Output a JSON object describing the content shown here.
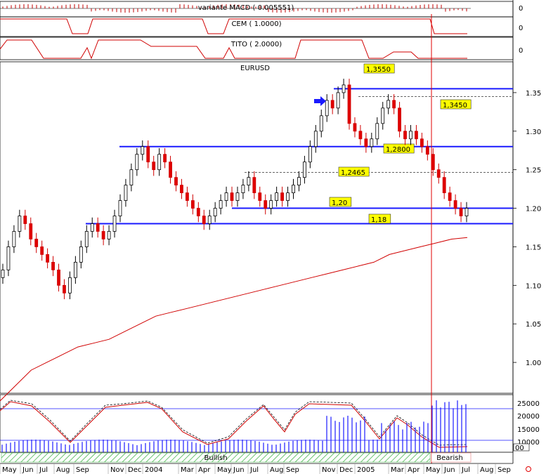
{
  "chart_data": {
    "type": "candlestick",
    "title": "EURUSD",
    "panels": [
      {
        "name": "variante MACD ( 0.005551)",
        "zero_label": "0"
      },
      {
        "name": "CEM ( 1.0000)",
        "zero_label": "0"
      },
      {
        "name": "TITO ( 2.0000)",
        "zero_label": "0"
      }
    ],
    "y_ticks": [
      "1.35",
      "1.30",
      "1.25",
      "1.20",
      "1.15",
      "1.10",
      "1.05",
      "1.00"
    ],
    "ylim": [
      0.96,
      1.39
    ],
    "x_tick_labels": [
      "May",
      "Jun",
      "Jul",
      "Aug",
      "Sep",
      "Nov",
      "Dec",
      "2004",
      "Mar",
      "Apr",
      "May",
      "Jun",
      "Jul",
      "Aug",
      "Sep",
      "Nov",
      "Dec",
      "2005",
      "Mar",
      "Apr",
      "May",
      "Jun",
      "Jul",
      "Aug",
      "Sep"
    ],
    "horizontal_levels": [
      {
        "value": 1.355,
        "label": "1,3550",
        "style": "solid"
      },
      {
        "value": 1.345,
        "label": "1,3450",
        "style": "dashed"
      },
      {
        "value": 1.28,
        "label": "1,2800",
        "style": "solid"
      },
      {
        "value": 1.2465,
        "label": "1,2465",
        "style": "dashed"
      },
      {
        "value": 1.2,
        "label": "1,20",
        "style": "solid"
      },
      {
        "value": 1.18,
        "label": "1,18",
        "style": "solid"
      }
    ],
    "close_series": [
      1.12,
      1.15,
      1.17,
      1.19,
      1.18,
      1.16,
      1.15,
      1.14,
      1.13,
      1.12,
      1.1,
      1.09,
      1.11,
      1.13,
      1.15,
      1.17,
      1.18,
      1.17,
      1.16,
      1.17,
      1.19,
      1.21,
      1.23,
      1.25,
      1.27,
      1.28,
      1.26,
      1.25,
      1.27,
      1.26,
      1.24,
      1.23,
      1.22,
      1.21,
      1.2,
      1.19,
      1.18,
      1.19,
      1.2,
      1.21,
      1.22,
      1.21,
      1.22,
      1.23,
      1.24,
      1.22,
      1.21,
      1.2,
      1.21,
      1.22,
      1.21,
      1.22,
      1.23,
      1.24,
      1.26,
      1.28,
      1.3,
      1.32,
      1.34,
      1.33,
      1.35,
      1.36,
      1.31,
      1.3,
      1.29,
      1.28,
      1.29,
      1.31,
      1.33,
      1.34,
      1.33,
      1.3,
      1.29,
      1.3,
      1.29,
      1.28,
      1.27,
      1.25,
      1.24,
      1.22,
      1.21,
      1.2,
      1.19,
      1.2
    ],
    "moving_average": [
      0.95,
      0.97,
      0.99,
      1.0,
      1.01,
      1.02,
      1.025,
      1.03,
      1.04,
      1.05,
      1.06,
      1.065,
      1.07,
      1.075,
      1.08,
      1.085,
      1.09,
      1.095,
      1.1,
      1.105,
      1.11,
      1.115,
      1.12,
      1.125,
      1.13,
      1.14,
      1.145,
      1.15,
      1.155,
      1.16,
      1.162
    ],
    "volume_axis": [
      "25000",
      "20000",
      "15000",
      "10000"
    ],
    "volume_extra_label": "00",
    "trend_labels": {
      "bullish": "Bullish",
      "bearish": "Bearish"
    }
  }
}
